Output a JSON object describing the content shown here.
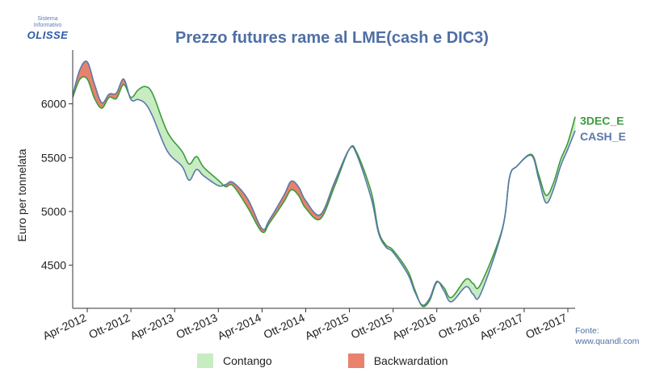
{
  "logo": {
    "line1": "Sistema",
    "line2": "Informativo",
    "brand": "OLISSE"
  },
  "source": {
    "line1": "Fonte:",
    "line2": "www.quandl.com"
  },
  "chart_data": {
    "type": "area",
    "title": "Prezzo futures rame al LME(cash e DIC3)",
    "ylabel": "Euro per tonnelata",
    "xlabel": "",
    "ylim": [
      4100,
      6500
    ],
    "yticks": [
      4500,
      5000,
      5500,
      6000
    ],
    "x_months_range": [
      "Feb-2012",
      "Oct-2017"
    ],
    "xtick_labels": [
      "Apr-2012",
      "Ott-2012",
      "Apr-2013",
      "Ott-2013",
      "Apr-2014",
      "Ott-2014",
      "Apr-2015",
      "Ott-2015",
      "Apr-2016",
      "Ott-2016",
      "Apr-2017",
      "Ott-2017"
    ],
    "xtick_months": [
      2,
      8,
      14,
      20,
      26,
      32,
      38,
      44,
      50,
      56,
      62,
      68
    ],
    "grid": false,
    "fill_legend": {
      "contango": "Contango",
      "backwardation": "Backwardation"
    },
    "colors": {
      "cash": "#5a78aa",
      "dec3": "#3d9a3d",
      "contango": "#c8ecc2",
      "backwardation": "#e8826c"
    },
    "series": [
      {
        "name": "CASH_E",
        "values": [
          6080,
          6320,
          6390,
          6180,
          6010,
          6090,
          6100,
          6230,
          6040,
          6040,
          6000,
          5880,
          5560,
          5420,
          5290,
          5390,
          5330,
          5240,
          5250,
          5270,
          5120,
          4840,
          4920,
          5150,
          5280,
          5230,
          5100,
          4970,
          5280,
          5580,
          5530,
          5120,
          4800,
          4670,
          4620,
          4420,
          4250,
          4130,
          4190,
          4350,
          4260,
          4160,
          4300,
          4230,
          4230,
          4830,
          5320,
          5420,
          5520,
          5300,
          5080,
          5200,
          5420,
          5580,
          5750
        ]
      },
      {
        "name": "3DEC_E",
        "values": [
          6060,
          6230,
          6230,
          6050,
          5960,
          6060,
          6050,
          6180,
          6060,
          6130,
          6160,
          6090,
          5740,
          5560,
          5440,
          5510,
          5410,
          5290,
          5230,
          5240,
          5040,
          4810,
          4890,
          5090,
          5200,
          5150,
          5030,
          4930,
          5240,
          5580,
          5550,
          5180,
          4820,
          4690,
          4640,
          4450,
          4270,
          4120,
          4170,
          4340,
          4290,
          4200,
          4370,
          4330,
          4320,
          4840,
          5320,
          5420,
          5530,
          5340,
          5150,
          5260,
          5480,
          5640,
          5880
        ]
      }
    ],
    "series_x_months": [
      0,
      1,
      2,
      3,
      4,
      5,
      6,
      7,
      8,
      9,
      10,
      11,
      13,
      15,
      16,
      17,
      18,
      20,
      21,
      22,
      24,
      26,
      27,
      29,
      30,
      31,
      32,
      34,
      36,
      38,
      39,
      41,
      42,
      43,
      44,
      46,
      47,
      48,
      49,
      50,
      51,
      52,
      54,
      55,
      56,
      59,
      60,
      61,
      63,
      64,
      65,
      66,
      67,
      68,
      69
    ]
  }
}
